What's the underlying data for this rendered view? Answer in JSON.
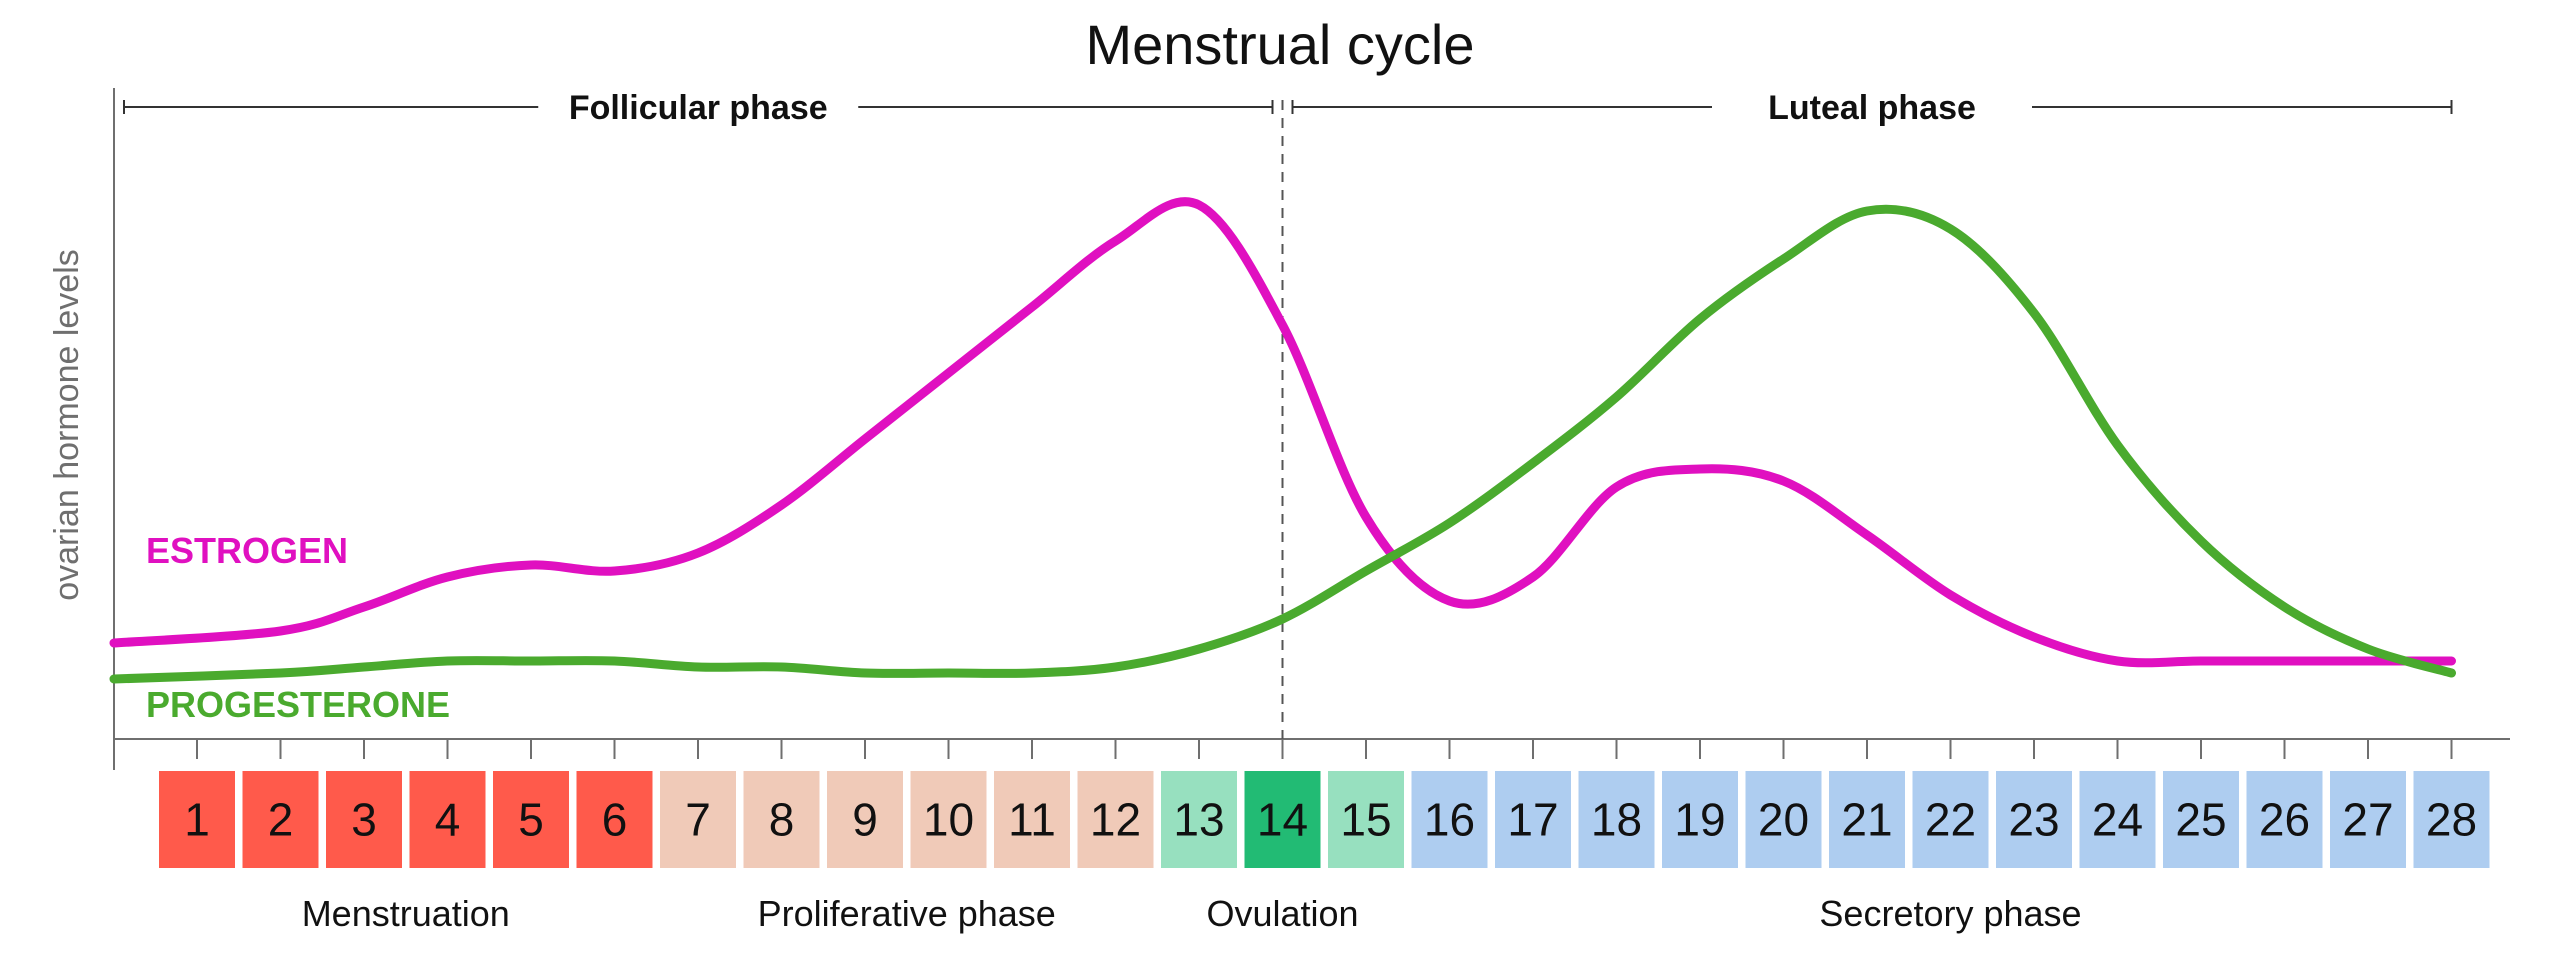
{
  "chart_data": {
    "type": "line",
    "title": "Menstrual cycle",
    "ylabel": "ovarian hormone levels",
    "xlabel": "",
    "x": [
      1,
      2,
      3,
      4,
      5,
      6,
      7,
      8,
      9,
      10,
      11,
      12,
      13,
      14,
      15,
      16,
      17,
      18,
      19,
      20,
      21,
      22,
      23,
      24,
      25,
      26,
      27,
      28
    ],
    "ylim": [
      0,
      100
    ],
    "grid": false,
    "series": [
      {
        "name": "ESTROGEN",
        "color": "#e010c0",
        "values": [
          17,
          19,
          23,
          28,
          30,
          29,
          32,
          40,
          51,
          62,
          73,
          84,
          90,
          70,
          38,
          24,
          28,
          43,
          46,
          44,
          35,
          25,
          18,
          14,
          14,
          14,
          14,
          14
        ]
      },
      {
        "name": "PROGESTERONE",
        "color": "#4aaa2e",
        "values": [
          11,
          12,
          13,
          14,
          14,
          14,
          13,
          13,
          12,
          12,
          12,
          13,
          16,
          21,
          29,
          37,
          47,
          58,
          71,
          81,
          89,
          86,
          72,
          50,
          34,
          23,
          16,
          12
        ]
      }
    ],
    "phases": [
      {
        "label": "Follicular phase",
        "start_day": 1,
        "end_day": 14
      },
      {
        "label": "Luteal phase",
        "start_day": 14,
        "end_day": 28
      }
    ],
    "ovulation_day": 14,
    "days": [
      {
        "label": "1",
        "color": "#ff5a4b"
      },
      {
        "label": "2",
        "color": "#ff5a4b"
      },
      {
        "label": "3",
        "color": "#ff5a4b"
      },
      {
        "label": "4",
        "color": "#ff5a4b"
      },
      {
        "label": "5",
        "color": "#ff5a4b"
      },
      {
        "label": "6",
        "color": "#ff5a4b"
      },
      {
        "label": "7",
        "color": "#f0cab8"
      },
      {
        "label": "8",
        "color": "#f0cab8"
      },
      {
        "label": "9",
        "color": "#f0cab8"
      },
      {
        "label": "10",
        "color": "#f0cab8"
      },
      {
        "label": "11",
        "color": "#f0cab8"
      },
      {
        "label": "12",
        "color": "#f0cab8"
      },
      {
        "label": "13",
        "color": "#97e0bf"
      },
      {
        "label": "14",
        "color": "#22bb74"
      },
      {
        "label": "15",
        "color": "#97e0bf"
      },
      {
        "label": "16",
        "color": "#aecdf0"
      },
      {
        "label": "17",
        "color": "#aecdf0"
      },
      {
        "label": "18",
        "color": "#aecdf0"
      },
      {
        "label": "19",
        "color": "#aecdf0"
      },
      {
        "label": "20",
        "color": "#aecdf0"
      },
      {
        "label": "21",
        "color": "#aecdf0"
      },
      {
        "label": "22",
        "color": "#aecdf0"
      },
      {
        "label": "23",
        "color": "#aecdf0"
      },
      {
        "label": "24",
        "color": "#aecdf0"
      },
      {
        "label": "25",
        "color": "#aecdf0"
      },
      {
        "label": "26",
        "color": "#aecdf0"
      },
      {
        "label": "27",
        "color": "#aecdf0"
      },
      {
        "label": "28",
        "color": "#aecdf0"
      }
    ],
    "stages": [
      {
        "label": "Menstruation",
        "start_day": 1,
        "end_day": 6
      },
      {
        "label": "Proliferative phase",
        "start_day": 7,
        "end_day": 12
      },
      {
        "label": "Ovulation",
        "start_day": 14,
        "end_day": 14
      },
      {
        "label": "Secretory phase",
        "start_day": 16,
        "end_day": 28
      }
    ]
  }
}
